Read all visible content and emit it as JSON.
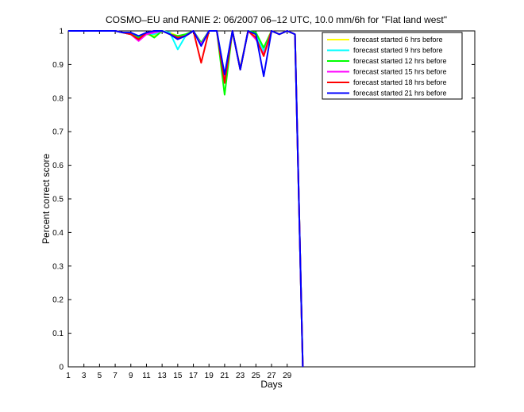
{
  "chart_data": {
    "type": "line",
    "title": "COSMO–EU and RANIE 2: 06/2007 06–12 UTC, 10.0 mm/6h for \"Flat land west\"",
    "xlabel": "Days",
    "ylabel": "Percent correct score",
    "xlim": [
      1,
      53
    ],
    "ylim": [
      0,
      1
    ],
    "xticks": [
      "1",
      "3",
      "5",
      "7",
      "9",
      "11",
      "13",
      "15",
      "17",
      "19",
      "21",
      "23",
      "25",
      "27",
      "29"
    ],
    "yticks": [
      "0",
      "0.1",
      "0.2",
      "0.3",
      "0.4",
      "0.5",
      "0.6",
      "0.7",
      "0.8",
      "0.9",
      "1"
    ],
    "legend_position": "top-right",
    "x": [
      1,
      2,
      3,
      4,
      5,
      6,
      7,
      8,
      9,
      10,
      11,
      12,
      13,
      14,
      15,
      16,
      17,
      18,
      19,
      20,
      21,
      22,
      23,
      24,
      25,
      26,
      27,
      28,
      29,
      30,
      31
    ],
    "series": [
      {
        "name": "forecast started 6 hrs before",
        "color": "#ffff00",
        "values": [
          1,
          1,
          1,
          1,
          1,
          1,
          1,
          0.995,
          0.99,
          0.98,
          0.99,
          0.985,
          1,
          0.995,
          0.985,
          0.985,
          1,
          0.96,
          1,
          1,
          0.86,
          1,
          0.89,
          1,
          0.985,
          0.95,
          1,
          0.99,
          1,
          0.99,
          0
        ]
      },
      {
        "name": "forecast started 9 hrs before",
        "color": "#00ffff",
        "values": [
          1,
          1,
          1,
          1,
          1,
          1,
          1,
          0.995,
          0.99,
          0.985,
          0.99,
          0.99,
          1,
          0.995,
          0.945,
          0.985,
          1,
          0.965,
          1,
          1,
          0.87,
          1,
          0.885,
          1,
          0.99,
          0.94,
          1,
          0.99,
          1,
          0.99,
          0
        ]
      },
      {
        "name": "forecast started 12 hrs before",
        "color": "#00ff00",
        "values": [
          1,
          1,
          1,
          1,
          1,
          1,
          1,
          0.995,
          0.99,
          0.98,
          0.995,
          0.98,
          1,
          0.99,
          0.985,
          0.99,
          1,
          0.965,
          1,
          1,
          0.81,
          1,
          0.885,
          1,
          0.995,
          0.95,
          1,
          0.99,
          1,
          0.99,
          0
        ]
      },
      {
        "name": "forecast started 15 hrs before",
        "color": "#ff00ff",
        "values": [
          1,
          1,
          1,
          1,
          1,
          1,
          1,
          0.995,
          0.99,
          0.97,
          0.99,
          0.995,
          1,
          0.99,
          0.98,
          0.985,
          1,
          0.96,
          1,
          1,
          0.85,
          1,
          0.885,
          1,
          0.975,
          0.93,
          1,
          0.99,
          1,
          0.99,
          0
        ]
      },
      {
        "name": "forecast started 18 hrs before",
        "color": "#ff0000",
        "values": [
          1,
          1,
          1,
          1,
          1,
          1,
          1,
          0.995,
          0.99,
          0.975,
          0.995,
          1,
          1,
          0.99,
          0.98,
          0.985,
          1,
          0.905,
          1,
          1,
          0.845,
          1,
          0.885,
          1,
          0.98,
          0.925,
          1,
          0.99,
          1,
          0.99,
          0
        ]
      },
      {
        "name": "forecast started 21 hrs before",
        "color": "#0000ff",
        "values": [
          1,
          1,
          1,
          1,
          1,
          1,
          1,
          0.995,
          0.995,
          0.985,
          0.995,
          1,
          1,
          0.99,
          0.975,
          0.985,
          1,
          0.955,
          1,
          1,
          0.87,
          1,
          0.885,
          1,
          0.99,
          0.865,
          1,
          0.99,
          1,
          0.99,
          0
        ]
      }
    ]
  }
}
